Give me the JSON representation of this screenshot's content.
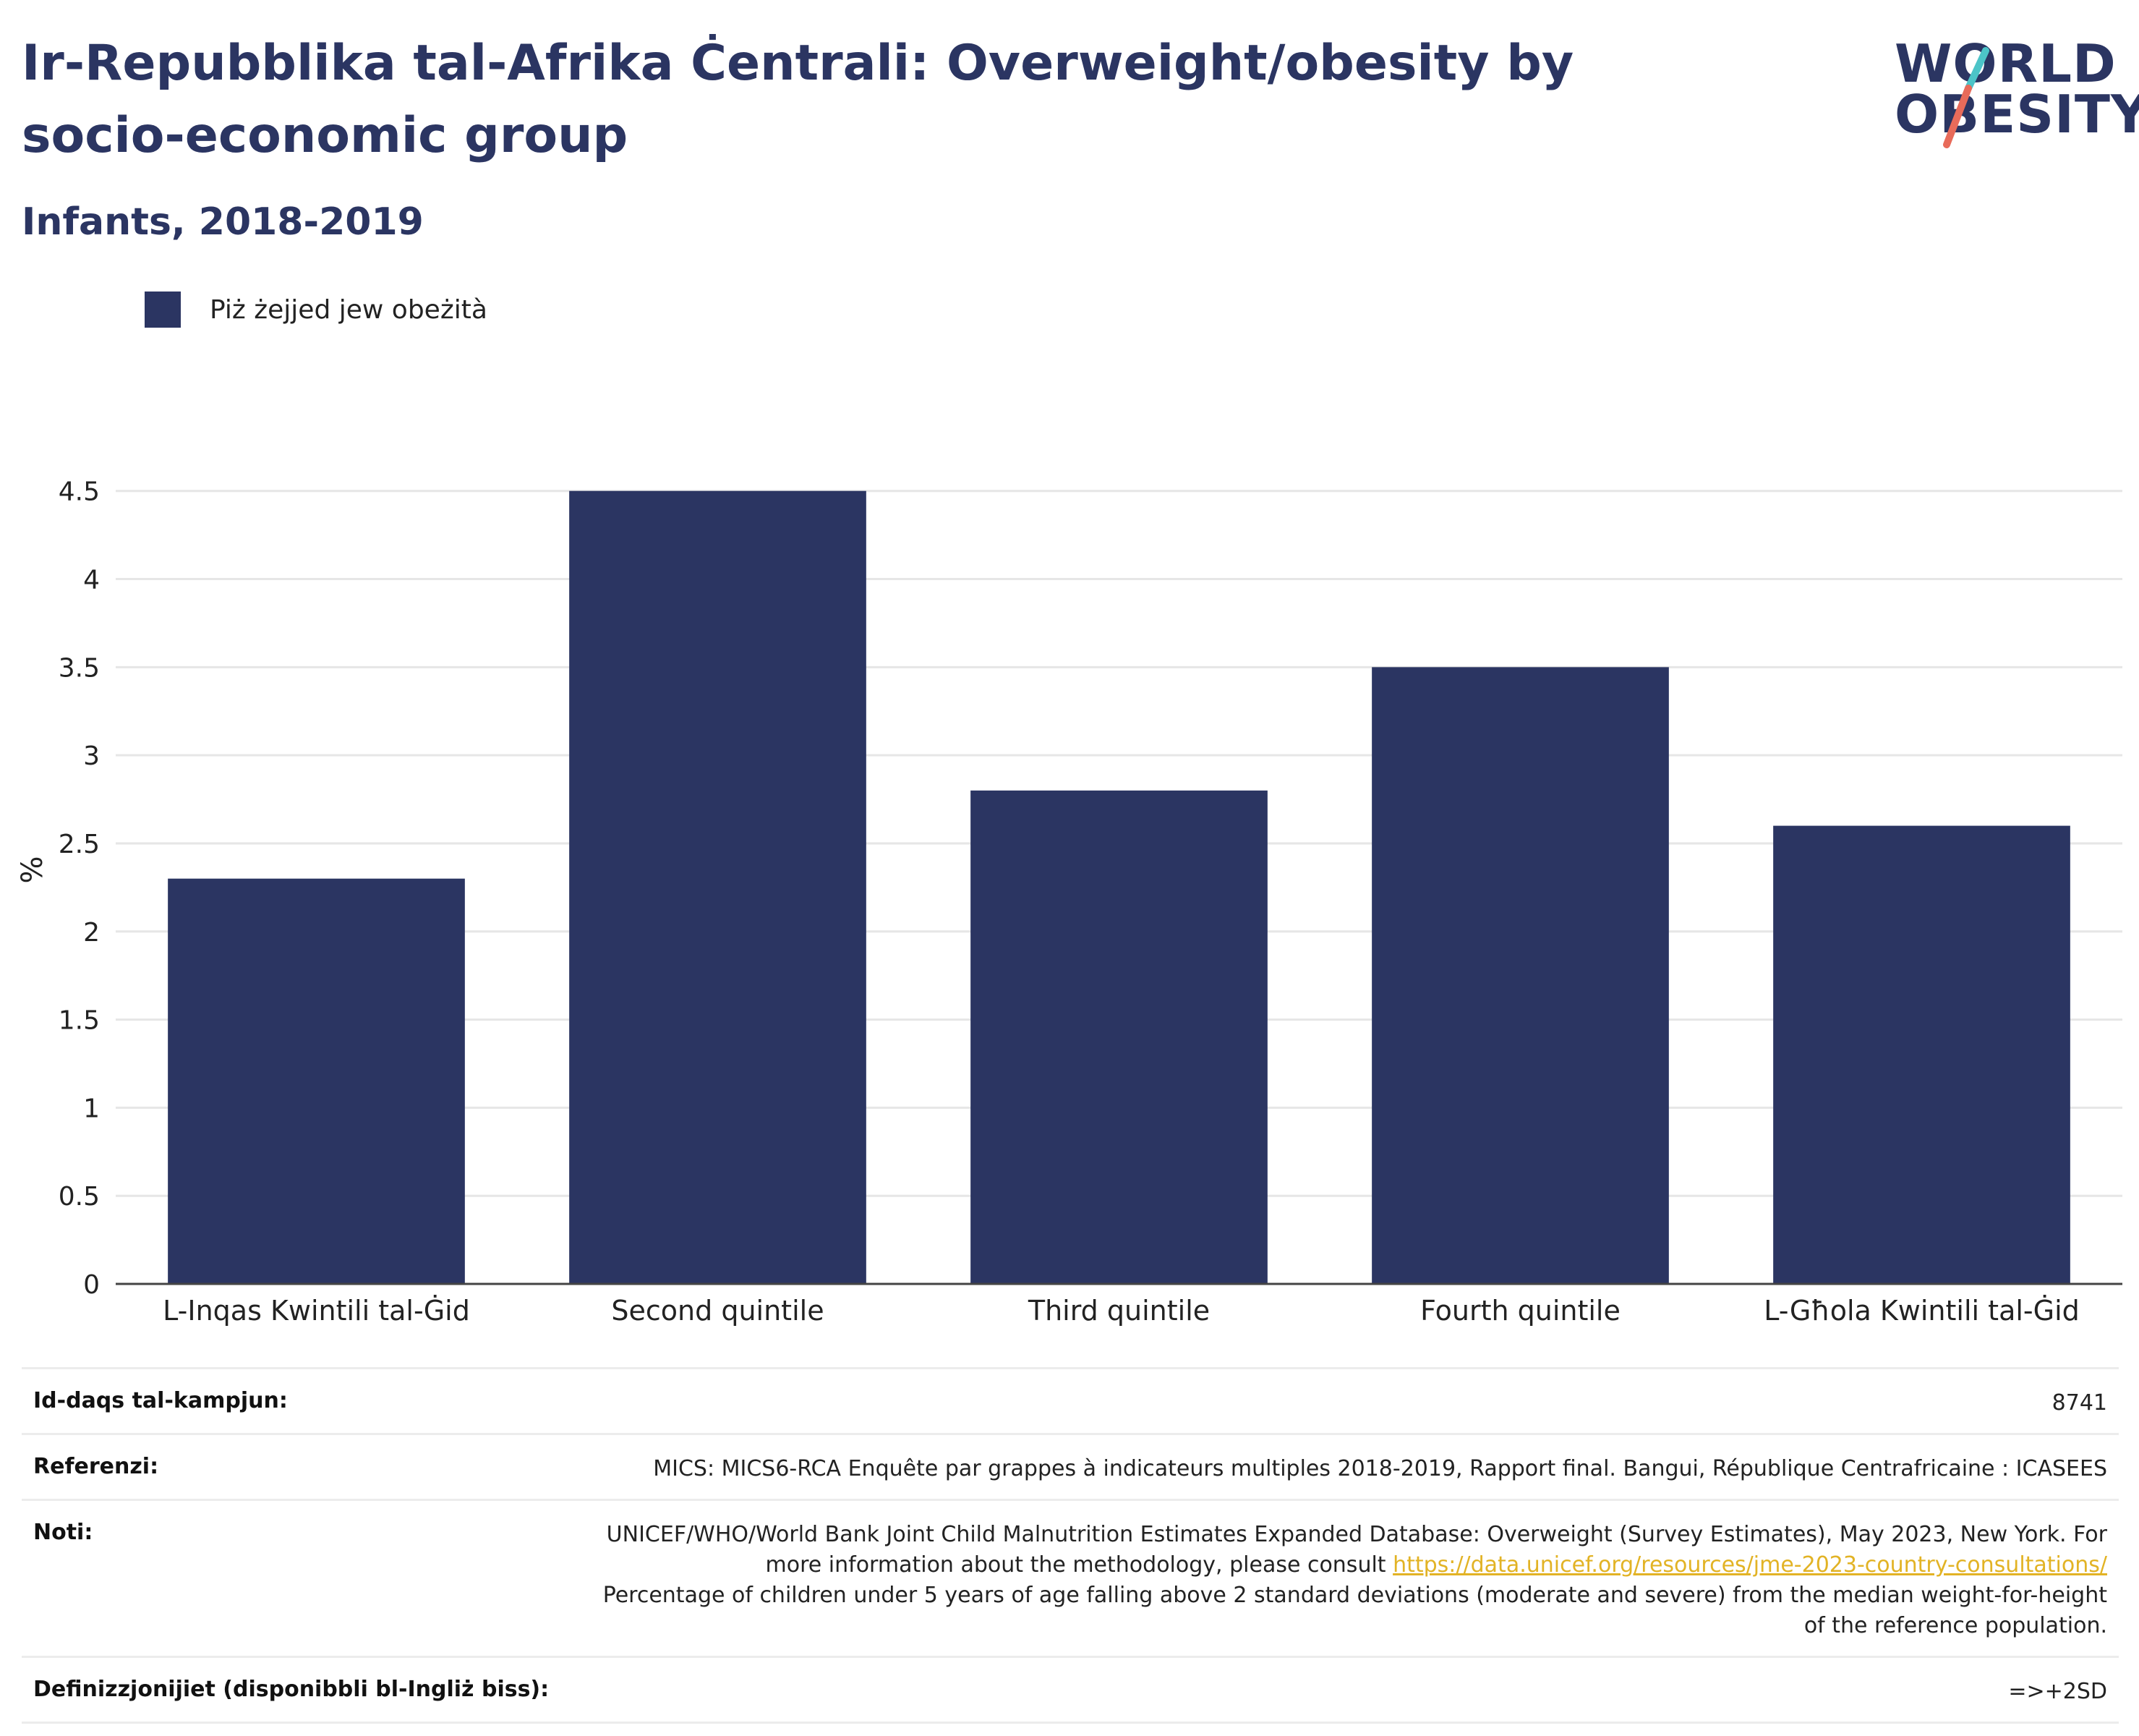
{
  "header": {
    "title": "Ir-Repubblika tal-Afrika Ċentrali: Overweight/obesity by socio-economic group",
    "subtitle": "Infants, 2018-2019"
  },
  "logo": {
    "line1": "WORLD",
    "line2": "OBESITY",
    "slash_colors": [
      "#4cc4c8",
      "#e86b5a"
    ]
  },
  "legend": {
    "label": "Piż żejjed jew obeżità",
    "color": "#2b3562"
  },
  "chart_data": {
    "type": "bar",
    "categories": [
      "L-Inqas Kwintili tal-Ġid",
      "Second quintile",
      "Third quintile",
      "Fourth quintile",
      "L-Għola Kwintili tal-Ġid"
    ],
    "series": [
      {
        "name": "Piż żejjed jew obeżità",
        "values": [
          2.3,
          4.5,
          2.8,
          3.5,
          2.6
        ],
        "color": "#2b3562"
      }
    ],
    "ylabel": "%",
    "ylim": [
      0,
      4.7
    ],
    "yticks": [
      0,
      0.5,
      1,
      1.5,
      2,
      2.5,
      3,
      3.5,
      4,
      4.5
    ],
    "ytick_labels": [
      "0",
      "0.5",
      "1",
      "1.5",
      "2",
      "2.5",
      "3",
      "3.5",
      "4",
      "4.5"
    ],
    "grid": true
  },
  "meta": {
    "sample_label": "Id-daqs tal-kampjun:",
    "sample_value": "8741",
    "references_label": "Referenzi:",
    "references_value": "MICS: MICS6-RCA Enquête par grappes à indicateurs multiples 2018-2019, Rapport final. Bangui, République Centrafricaine : ICASEES",
    "notes_label": "Noti:",
    "notes_text1": "UNICEF/WHO/World Bank Joint Child Malnutrition Estimates Expanded Database: Overweight (Survey Estimates), May 2023, New York. For more information about the methodology, please consult ",
    "notes_link": "https://data.unicef.org/resources/jme-2023-country-consultations/",
    "notes_text2": "Percentage of children under 5 years of age falling above 2 standard deviations (moderate and severe) from the median weight-for-height of the reference population.",
    "definitions_label": "Definizzjonijiet (disponibbli bl-Ingliż biss):",
    "definitions_value": "=>+2SD"
  }
}
